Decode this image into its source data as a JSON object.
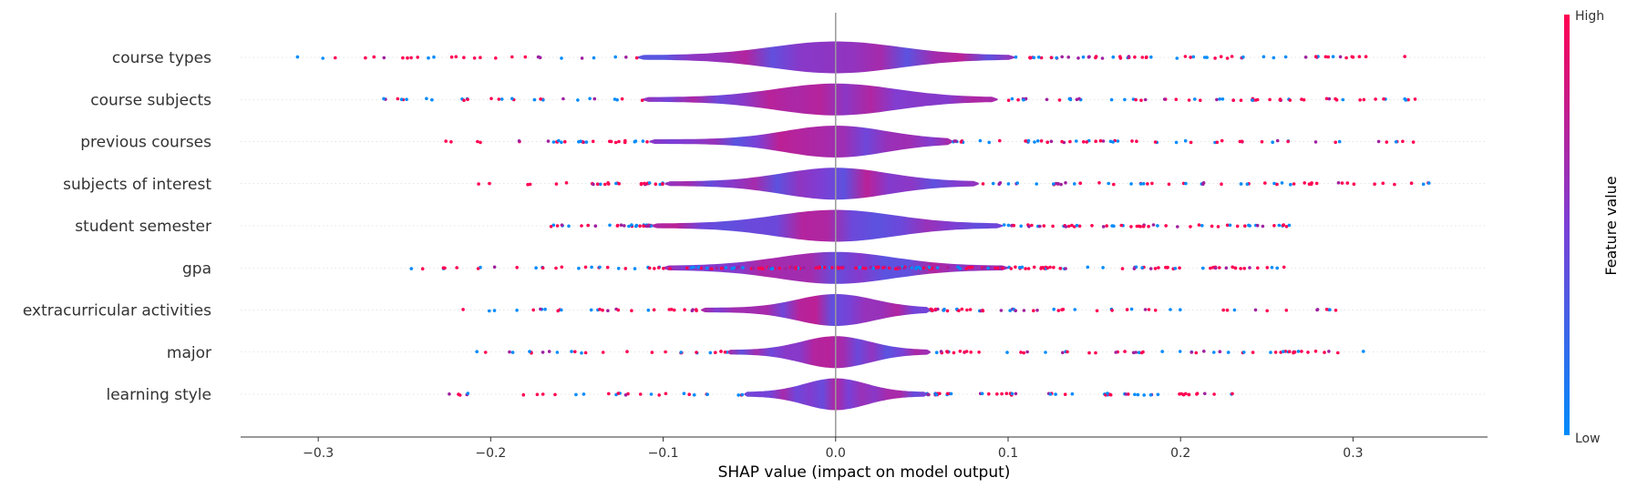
{
  "chart_data": {
    "type": "violin",
    "xlabel": "SHAP value (impact on model output)",
    "xlim": [
      -0.345,
      0.378
    ],
    "xticks": [
      -0.3,
      -0.2,
      -0.1,
      0.0,
      0.1,
      0.2,
      0.3
    ],
    "xtick_labels": [
      "−0.3",
      "−0.2",
      "−0.1",
      "0.0",
      "0.1",
      "0.2",
      "0.3"
    ],
    "colorbar": {
      "title": "Feature value",
      "high_label": "High",
      "low_label": "Low",
      "low_color": "#008bfb",
      "high_color": "#ff0052"
    },
    "features": [
      {
        "name": "course types",
        "body_range": [
          -0.115,
          0.104
        ],
        "min": -0.312,
        "max": 0.33
      },
      {
        "name": "course subjects",
        "body_range": [
          -0.112,
          0.094
        ],
        "min": -0.262,
        "max": 0.336
      },
      {
        "name": "previous courses",
        "body_range": [
          -0.108,
          0.068
        ],
        "min": -0.226,
        "max": 0.335
      },
      {
        "name": "subjects of interest",
        "body_range": [
          -0.099,
          0.083
        ],
        "min": -0.207,
        "max": 0.344
      },
      {
        "name": "student semester",
        "body_range": [
          -0.107,
          0.097
        ],
        "min": -0.165,
        "max": 0.263
      },
      {
        "name": "gpa",
        "body_range": [
          -0.1,
          0.1
        ],
        "min": -0.246,
        "max": 0.26
      },
      {
        "name": "extracurricular activities",
        "body_range": [
          -0.078,
          0.055
        ],
        "min": -0.216,
        "max": 0.29
      },
      {
        "name": "major",
        "body_range": [
          -0.063,
          0.055
        ],
        "min": -0.208,
        "max": 0.306
      },
      {
        "name": "learning style",
        "body_range": [
          -0.053,
          0.053
        ],
        "min": -0.224,
        "max": 0.23
      }
    ]
  }
}
